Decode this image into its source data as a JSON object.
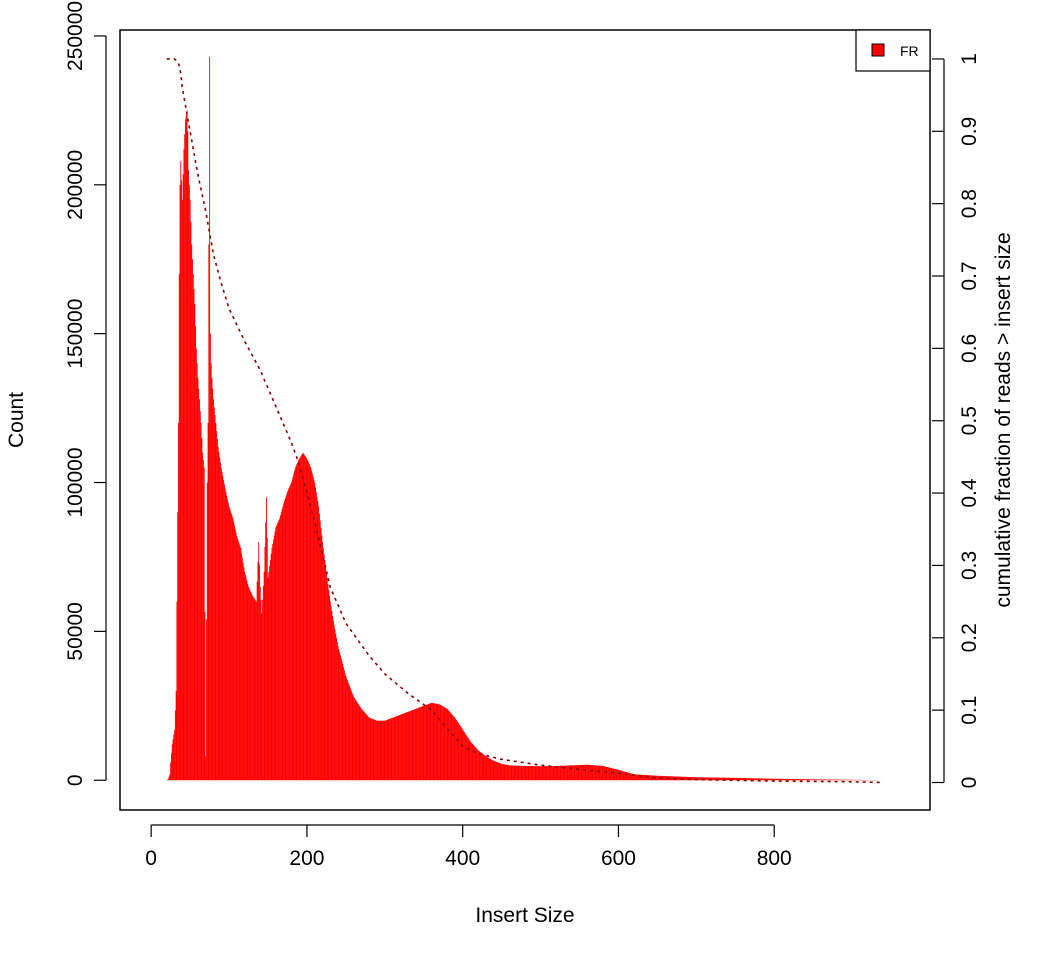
{
  "chart_data": {
    "type": "bar",
    "title": "",
    "xlabel": "Insert Size",
    "ylabel": "Count",
    "y2label": "cumulative fraction of reads > insert size",
    "xlim": [
      -40,
      1000
    ],
    "ylim": [
      -10000,
      252000
    ],
    "y2lim": [
      -0.038,
      1.04
    ],
    "xticks": [
      "0",
      "200",
      "400",
      "600",
      "800"
    ],
    "xtick_values": [
      0,
      200,
      400,
      600,
      800
    ],
    "yticks": [
      "0",
      "50000",
      "100000",
      "150000",
      "200000",
      "250000"
    ],
    "ytick_values": [
      0,
      50000,
      100000,
      150000,
      200000,
      250000
    ],
    "y2ticks": [
      "0",
      "0.1",
      "0.2",
      "0.3",
      "0.4",
      "0.5",
      "0.6",
      "0.7",
      "0.8",
      "0.9",
      "1"
    ],
    "y2tick_values": [
      0,
      0.1,
      0.2,
      0.3,
      0.4,
      0.5,
      0.6,
      0.7,
      0.8,
      0.9,
      1.0
    ],
    "legend": {
      "position": "top-right",
      "entries": [
        {
          "name": "FR",
          "color": "#ff0000"
        }
      ]
    },
    "colors": {
      "histogram": "#ff0000",
      "cumulative": "#8b0000"
    },
    "series": [
      {
        "name": "FR",
        "x": [
          20,
          22,
          24,
          25,
          27,
          30,
          32,
          33,
          35,
          36,
          37,
          38,
          40,
          42,
          44,
          46,
          47,
          48,
          50,
          52,
          54,
          56,
          58,
          60,
          62,
          64,
          66,
          68,
          70,
          72,
          73,
          74,
          75,
          76,
          77,
          78,
          80,
          83,
          86,
          90,
          95,
          100,
          105,
          110,
          115,
          120,
          125,
          130,
          135,
          138,
          140,
          142,
          145,
          148,
          150,
          152,
          155,
          160,
          165,
          170,
          175,
          180,
          185,
          190,
          195,
          200,
          205,
          210,
          215,
          220,
          225,
          230,
          235,
          240,
          250,
          260,
          270,
          280,
          290,
          300,
          310,
          320,
          330,
          340,
          350,
          360,
          370,
          380,
          390,
          400,
          410,
          420,
          430,
          440,
          450,
          460,
          480,
          500,
          520,
          540,
          560,
          580,
          600,
          620,
          650,
          700,
          750,
          800,
          850,
          900,
          940
        ],
        "values": [
          0,
          500,
          2000,
          6000,
          12000,
          17000,
          30000,
          60000,
          120000,
          170000,
          200000,
          208000,
          195000,
          212000,
          222000,
          225000,
          218000,
          205000,
          195000,
          180000,
          170000,
          160000,
          145000,
          135000,
          128000,
          120000,
          110000,
          105000,
          8000,
          100000,
          120000,
          180000,
          243000,
          150000,
          140000,
          135000,
          128000,
          120000,
          112000,
          105000,
          98000,
          92000,
          88000,
          82000,
          78000,
          70000,
          65000,
          62000,
          60000,
          80000,
          65000,
          56000,
          70000,
          95000,
          68000,
          72000,
          78000,
          85000,
          88000,
          93000,
          97000,
          100000,
          105000,
          108000,
          110000,
          108000,
          105000,
          100000,
          92000,
          80000,
          70000,
          60000,
          52000,
          45000,
          35000,
          28000,
          24000,
          21000,
          20000,
          20000,
          21000,
          22000,
          23000,
          24000,
          25000,
          26000,
          25500,
          24000,
          21000,
          17000,
          13000,
          10000,
          8000,
          6500,
          5500,
          5000,
          4800,
          4700,
          4800,
          5000,
          5200,
          4800,
          3500,
          2000,
          1500,
          1000,
          800,
          500,
          300,
          150,
          0
        ]
      },
      {
        "name": "cumulative",
        "x": [
          20,
          30,
          35,
          38,
          40,
          45,
          50,
          60,
          70,
          80,
          90,
          100,
          120,
          140,
          160,
          180,
          190,
          200,
          210,
          230,
          250,
          280,
          300,
          330,
          360,
          400,
          420,
          450,
          500,
          550,
          600,
          650,
          700,
          800,
          900,
          940
        ],
        "values": [
          1.0,
          1.0,
          0.995,
          0.98,
          0.96,
          0.93,
          0.9,
          0.84,
          0.79,
          0.73,
          0.69,
          0.655,
          0.61,
          0.57,
          0.52,
          0.47,
          0.44,
          0.4,
          0.36,
          0.27,
          0.22,
          0.175,
          0.15,
          0.123,
          0.1,
          0.05,
          0.04,
          0.032,
          0.024,
          0.018,
          0.013,
          0.006,
          0.004,
          0.002,
          0.001,
          0.0
        ]
      }
    ]
  }
}
